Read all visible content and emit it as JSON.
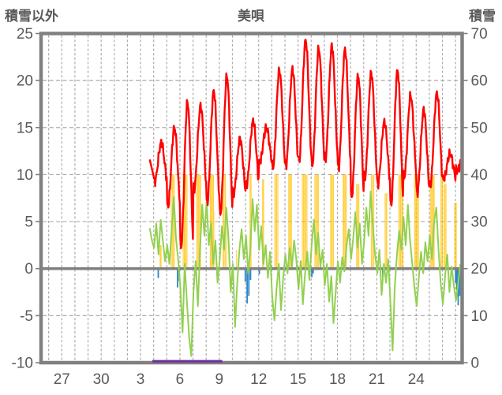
{
  "header": {
    "left_axis_title": "積雪以外",
    "station_title": "美唄",
    "right_axis_title": "積雪"
  },
  "chart_data": {
    "type": "line",
    "title": "美唄",
    "subtitle": "hourly weather elements; left axis = non-snow elements, right axis = snow depth (cm)",
    "grid": true,
    "legend": "none",
    "left_axis": {
      "title": "積雪以外",
      "min": -10,
      "max": 25,
      "ticks": [
        25,
        20,
        15,
        10,
        5,
        0,
        -5,
        -10
      ]
    },
    "right_axis": {
      "title": "積雪",
      "min": 0,
      "max": 70,
      "ticks": [
        70,
        60,
        50,
        40,
        30,
        20,
        10,
        0
      ]
    },
    "x_axis": {
      "tick_labels": [
        "27",
        "30",
        "3",
        "6",
        "9",
        "12",
        "15",
        "18",
        "21",
        "24"
      ],
      "tick_positions": [
        2,
        5,
        8,
        11,
        14,
        17,
        20,
        23,
        26,
        29
      ],
      "range": [
        0.42,
        32.5
      ],
      "gridline_step": 1,
      "note": "day-of-month ticks, late April through May"
    },
    "colors": {
      "temperature": "#FF0000",
      "green_series": "#92D050",
      "sunshine": "#FFC000",
      "precipitation": "#2E86C8",
      "snow": "#7030A0",
      "frame": "#808080",
      "grid": "#ABABAB",
      "text": "#595959"
    },
    "series": {
      "temperature": {
        "name": "temperature-red-line",
        "start": {
          "t": 8.7,
          "value": 11.6,
          "evening_value": 9.8
        },
        "day_start_t": 9,
        "daily_high": [
          13.4,
          15.0,
          17.7,
          17.3,
          18.9,
          20.5,
          13.8,
          15.7,
          15.0,
          21.1,
          21.2,
          24.3,
          23.4,
          23.7,
          23.3,
          20.5,
          20.8,
          15.6,
          21.1,
          18.4,
          16.9,
          18.7,
          12.2,
          11.6
        ],
        "daily_low": [
          9.3,
          6.6,
          2.3,
          8.5,
          7.0,
          5.8,
          7.9,
          9.0,
          11.3,
          10.7,
          11.0,
          11.5,
          11.0,
          11.6,
          10.7,
          7.6,
          9.5,
          9.0,
          6.8,
          9.7,
          8.0,
          9.0,
          9.5,
          10.4
        ],
        "min_phase": 0.08,
        "end_t": 32.5
      },
      "green_line": {
        "name": "green-noisy-line",
        "t0": 8.7,
        "dt": 0.16667,
        "values": [
          4.3,
          3.0,
          2.2,
          4.8,
          1.5,
          5.2,
          3.0,
          0.8,
          2.5,
          0.5,
          4.0,
          7.6,
          3.2,
          1.0,
          -2.0,
          -6.8,
          0.5,
          -3.5,
          -7.3,
          -9.3,
          -2.5,
          0.8,
          -4.0,
          2.0,
          6.8,
          3.5,
          7.2,
          2.5,
          4.8,
          0.5,
          3.0,
          -1.5,
          1.0,
          4.5,
          2.0,
          6.5,
          3.2,
          -2.5,
          0.5,
          -6.2,
          -1.5,
          2.0,
          4.2,
          1.0,
          3.5,
          -0.5,
          2.2,
          7.4,
          4.0,
          6.8,
          2.0,
          4.5,
          0.5,
          2.5,
          -1.0,
          1.8,
          -3.0,
          -5.5,
          -2.0,
          0.5,
          -4.4,
          -1.0,
          1.5,
          -0.5,
          2.2,
          0.2,
          3.0,
          1.0,
          -2.2,
          0.8,
          -3.8,
          -0.5,
          1.8,
          -1.2,
          2.5,
          5.2,
          1.5,
          3.8,
          0.2,
          2.0,
          -1.8,
          0.5,
          -3.5,
          -0.8,
          -5.8,
          -2.5,
          0.8,
          -1.5,
          1.2,
          -0.3,
          2.5,
          4.2,
          1.0,
          3.2,
          6.0,
          2.2,
          4.8,
          0.5,
          2.8,
          6.5,
          3.5,
          8.2,
          4.5,
          1.5,
          -0.5,
          2.0,
          -2.8,
          0.5,
          -1.5,
          1.0,
          -3.5,
          -8.7,
          -2.0,
          1.5,
          4.0,
          2.0,
          5.5,
          2.5,
          6.8,
          3.0,
          0.5,
          -2.0,
          -4.0,
          -1.0,
          1.8,
          -0.5,
          2.8,
          0.8,
          3.5,
          1.0,
          5.0,
          6.5,
          2.0,
          -1.5,
          -3.8,
          -0.8,
          1.5,
          -2.5,
          0.2,
          -1.8,
          -3.4,
          -1.5,
          0.5
        ]
      },
      "sunshine_bars": {
        "name": "sunshine-yellow-bars",
        "max_height": 10,
        "segments": [
          [
            9.45,
            9.62,
            2.5
          ],
          [
            10.32,
            10.62,
            10
          ],
          [
            11.22,
            11.58,
            10
          ],
          [
            12.25,
            12.62,
            10
          ],
          [
            13.28,
            13.6,
            10
          ],
          [
            13.63,
            13.68,
            6
          ],
          [
            14.25,
            14.52,
            10
          ],
          [
            14.56,
            14.62,
            5
          ],
          [
            15.28,
            15.36,
            2
          ],
          [
            16.3,
            16.48,
            10
          ],
          [
            17.26,
            17.44,
            9.5
          ],
          [
            18.2,
            18.5,
            10
          ],
          [
            19.25,
            19.55,
            10
          ],
          [
            20.3,
            20.72,
            10
          ],
          [
            21.25,
            21.6,
            10
          ],
          [
            22.45,
            22.75,
            10
          ],
          [
            23.4,
            23.72,
            10
          ],
          [
            24.42,
            24.68,
            9
          ],
          [
            25.55,
            25.82,
            10
          ],
          [
            26.6,
            26.82,
            8
          ],
          [
            27.65,
            28.02,
            10
          ],
          [
            28.85,
            29.22,
            10
          ],
          [
            30.05,
            30.42,
            10
          ],
          [
            30.85,
            31.05,
            10
          ],
          [
            31.1,
            31.32,
            9
          ],
          [
            31.9,
            32.1,
            7
          ]
        ]
      },
      "precip_bars": {
        "name": "precipitation-blue-bars",
        "direction": "down-from-zero",
        "bar_width_days": 0.11,
        "bars": [
          [
            9.35,
            1.0
          ],
          [
            10.82,
            2.0
          ],
          [
            10.95,
            1.3
          ],
          [
            15.98,
            1.4
          ],
          [
            16.12,
            3.7
          ],
          [
            16.25,
            2.9
          ],
          [
            16.38,
            1.2
          ],
          [
            17.05,
            0.6
          ],
          [
            21.05,
            0.9
          ],
          [
            21.15,
            0.5
          ],
          [
            26.45,
            0.9
          ],
          [
            32.0,
            1.5
          ],
          [
            32.1,
            2.3
          ],
          [
            32.2,
            3.9
          ],
          [
            32.32,
            2.9
          ],
          [
            32.42,
            1.6
          ]
        ]
      },
      "snow_line": {
        "name": "snow-depth-purple-line",
        "t0": 8.9,
        "t1": 14.23,
        "value_cm": 0
      }
    }
  }
}
